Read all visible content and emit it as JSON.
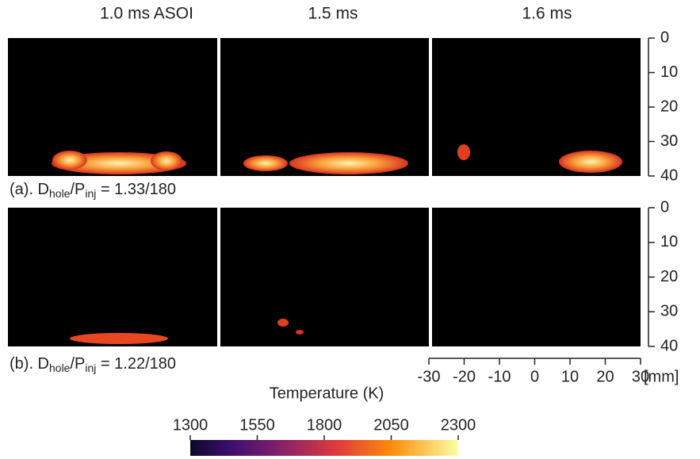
{
  "column_titles": [
    "1.0 ms ASOI",
    "1.5 ms",
    "1.6 ms"
  ],
  "rows": [
    {
      "prefix": "(a). D",
      "sub1": "hole",
      "middle": "/P",
      "sub2": "inj",
      "suffix": " = 1.33/180"
    },
    {
      "prefix": "(b). D",
      "sub1": "hole",
      "middle": "/P",
      "sub2": "inj",
      "suffix": " = 1.22/180"
    }
  ],
  "y_axis": {
    "ticks": [
      "0",
      "10",
      "20",
      "30",
      "40"
    ]
  },
  "x_axis": {
    "ticks": [
      "-30",
      "-20",
      "-10",
      "0",
      "10",
      "20",
      "30"
    ],
    "unit": "[mm]"
  },
  "colorbar": {
    "title": "Temperature (K)",
    "ticks": [
      "1300",
      "1550",
      "1800",
      "2050",
      "2300"
    ]
  }
}
